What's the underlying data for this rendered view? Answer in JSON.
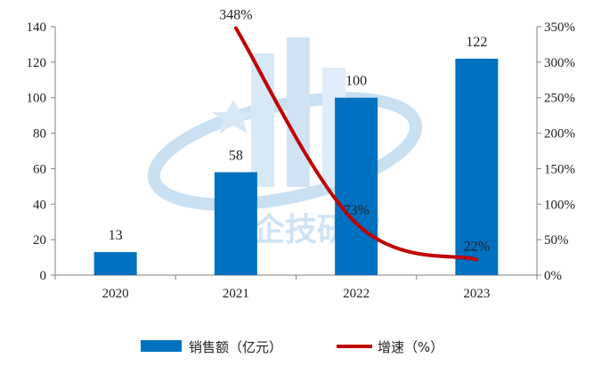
{
  "chart_data": {
    "type": "bar",
    "categories": [
      "2020",
      "2021",
      "2022",
      "2023"
    ],
    "series": [
      {
        "name": "销售额（亿元）",
        "type": "bar",
        "axis": "left",
        "values": [
          13,
          58,
          100,
          122
        ],
        "labels": [
          "13",
          "58",
          "100",
          "122"
        ],
        "color": "#0070C0"
      },
      {
        "name": "增速（%）",
        "type": "line",
        "axis": "right",
        "values": [
          null,
          348,
          73,
          22
        ],
        "labels": [
          "",
          "348%",
          "73%",
          "22%"
        ],
        "color": "#C00000"
      }
    ],
    "y_left": {
      "min": 0,
      "max": 140,
      "step": 20,
      "ticks": [
        "0",
        "20",
        "40",
        "60",
        "80",
        "100",
        "120",
        "140"
      ]
    },
    "y_right": {
      "min": 0,
      "max": 350,
      "step": 50,
      "ticks": [
        "0%",
        "50%",
        "100%",
        "150%",
        "200%",
        "250%",
        "300%",
        "350%"
      ]
    },
    "grid": false,
    "legend": "bottom",
    "watermark_text": "深企技研究"
  }
}
